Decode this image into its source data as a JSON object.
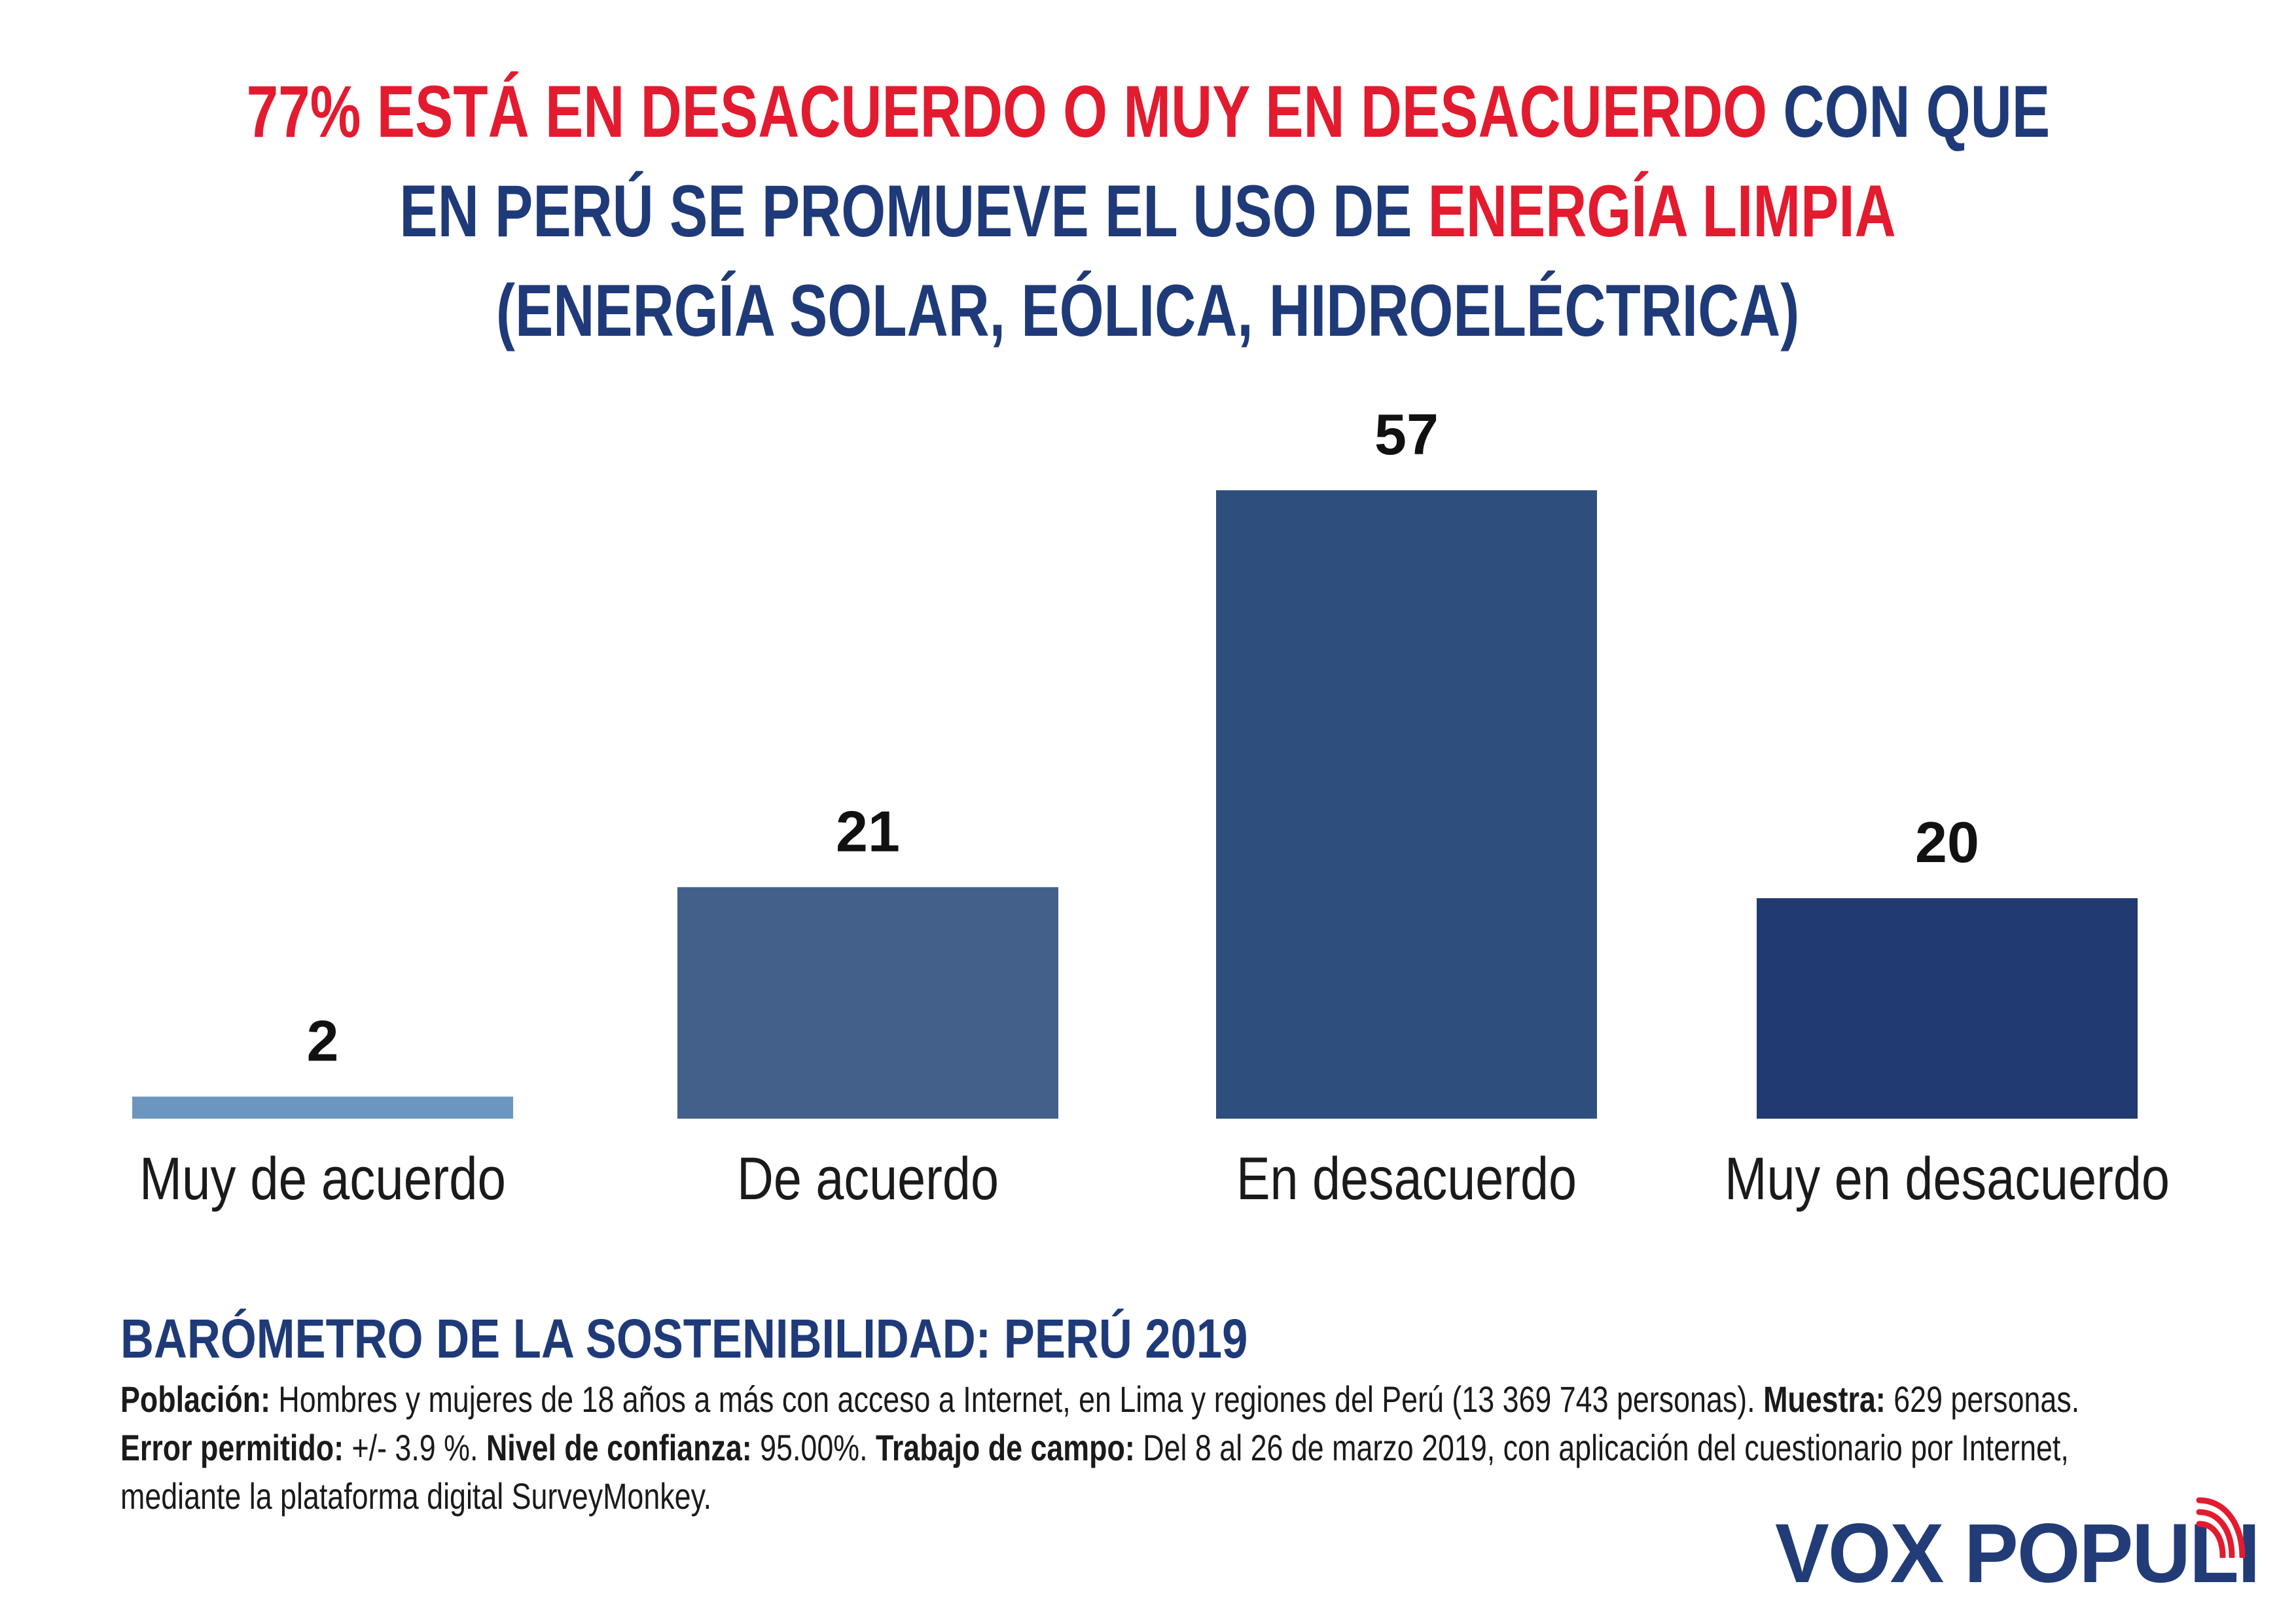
{
  "title": {
    "line1_red": "77% ESTÁ EN DESACUERDO O MUY EN DESACUERDO",
    "line1_blue": " CON QUE",
    "line2_blue": "EN PERÚ SE PROMUEVE EL USO DE ",
    "line2_red": "ENERGÍA LIMPIA",
    "line3": "(ENERGÍA SOLAR, EÓLICA, HIDROELÉCTRICA)"
  },
  "colors": {
    "red": "#e31b2f",
    "navy": "#1f3a78",
    "bars": [
      "#6b96c0",
      "#42608a",
      "#2e4f7e",
      "#213a71"
    ]
  },
  "chart_data": {
    "type": "bar",
    "title": "77% ESTÁ EN DESACUERDO O MUY EN DESACUERDO CON QUE EN PERÚ SE PROMUEVE EL USO DE ENERGÍA LIMPIA (ENERGÍA SOLAR, EÓLICA, HIDROELÉCTRICA)",
    "categories": [
      "Muy de acuerdo",
      "De acuerdo",
      "En desacuerdo",
      "Muy en desacuerdo"
    ],
    "values": [
      2,
      21,
      57,
      20
    ],
    "value_labels": [
      "2",
      "21",
      "57",
      "20"
    ],
    "xlabel": "",
    "ylabel": "",
    "ylim": [
      0,
      57
    ],
    "grid": false,
    "legend": "none"
  },
  "footer": {
    "title": "BARÓMETRO DE LA SOSTENIBILIDAD: PERÚ 2019",
    "poblacion_label": "Población:",
    "poblacion_text": " Hombres y mujeres de 18 años a más con acceso a Internet, en Lima y regiones del Perú (13 369 743 personas). ",
    "muestra_label": "Muestra:",
    "muestra_text": " 629 personas.",
    "error_label": "Error permitido:",
    "error_text": " +/- 3.9 %. ",
    "nivel_label": "Nivel de confianza:",
    "nivel_text": " 95.00%. ",
    "trabajo_label": "Trabajo de campo:",
    "trabajo_text": " Del 8 al 26 de marzo 2019, con aplicación del cuestionario por Internet,",
    "line3": "mediante la plataforma digital SurveyMonkey."
  },
  "logo": {
    "text": "VOX POPULI"
  }
}
